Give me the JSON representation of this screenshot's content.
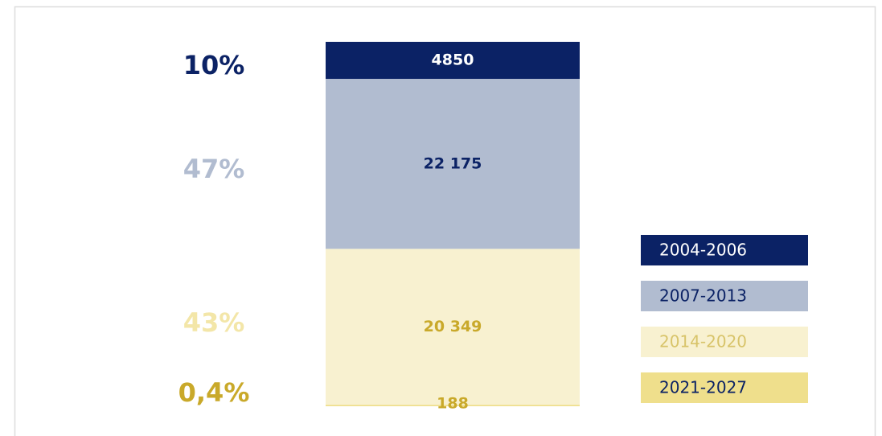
{
  "chart_data": {
    "type": "stacked-bar",
    "series": [
      {
        "name": "2004-2006",
        "color": "#0b2265",
        "values": [
          4850
        ],
        "value_labels": [
          "4850"
        ]
      },
      {
        "name": "2007-2013",
        "color": "#b1bcd0",
        "values": [
          22175
        ],
        "value_labels": [
          "22 175"
        ]
      },
      {
        "name": "2014-2020",
        "color": "#f8f1d0",
        "values": [
          20349
        ],
        "value_labels": [
          "20 349"
        ]
      },
      {
        "name": "2021-2027",
        "color": "#efdf8c",
        "values": [
          188
        ],
        "value_labels": [
          "188"
        ]
      }
    ],
    "shares": [
      "10%",
      "47%",
      "43%",
      "0,4%"
    ]
  }
}
